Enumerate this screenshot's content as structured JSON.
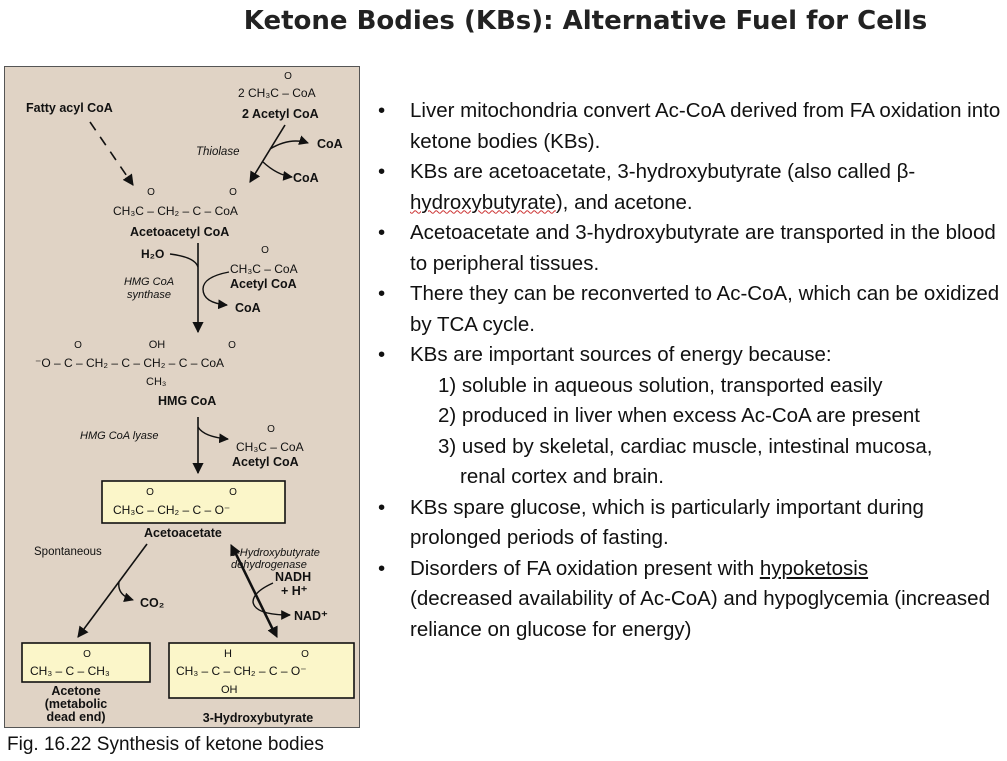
{
  "title": "Ketone Bodies (KBs): Alternative Fuel for Cells",
  "caption": "Fig. 16.22 Synthesis of ketone bodies",
  "diagram": {
    "colors": {
      "panel": "#e0d3c5",
      "box": "#fbf6c9"
    },
    "fatty_acyl": "Fatty acyl CoA",
    "two_acetyl_formula": "2 CH₃C – CoA",
    "two_acetyl": "2 Acetyl CoA",
    "thiolase": "Thiolase",
    "coa1": "CoA",
    "coa2": "CoA",
    "acetoacetyl_formula": "CH₃C – CH₂ – C – CoA",
    "acetoacetyl": "Acetoacetyl CoA",
    "h2o": "H₂O",
    "hmg_synthase": "HMG CoA",
    "hmg_synthase2": "synthase",
    "acetyl_formula1": "CH₃C – CoA",
    "acetyl1": "Acetyl CoA",
    "coa3": "CoA",
    "hmg_formula": "⁻O – C – CH₂ – C – CH₂ – C – CoA",
    "hmg_oh": "OH",
    "hmg_ch3": "CH₃",
    "hmg": "HMG CoA",
    "hmg_lyase": "HMG CoA lyase",
    "acetyl_formula2": "CH₃C – CoA",
    "acetyl2": "Acetyl CoA",
    "acetoacetate_formula": "CH₃C – CH₂ – C – O⁻",
    "acetoacetate": "Acetoacetate",
    "spontaneous": "Spontaneous",
    "co2": "CO₂",
    "dehydrogenase1": "3-Hydroxybutyrate",
    "dehydrogenase2": "dehydrogenase",
    "nadh": "NADH",
    "hplus": "+ H⁺",
    "nad": "NAD⁺",
    "acetone_formula": "CH₃ – C – CH₃",
    "acetone1": "Acetone",
    "acetone2": "(metabolic",
    "acetone3": "dead end)",
    "hb_formula": "CH₃ – C – CH₂ – C – O⁻",
    "hb_h": "H",
    "hb_oh": "OH",
    "hb": "3-Hydroxybutyrate",
    "oxygen": "O"
  },
  "bullets": {
    "b1": "Liver mitochondria convert Ac-CoA derived from FA oxidation into ketone bodies (KBs).",
    "b2a": "KBs are acetoacetate, 3-hydroxybutyrate (also called β-",
    "b2b": "hydroxybutyrate",
    "b2c": "), and acetone.",
    "b3": "Acetoacetate and 3-hydroxybutyrate are transported in the blood to peripheral tissues.",
    "b4": "There they can be reconverted to Ac-CoA, which can be oxidized by TCA cycle.",
    "b5": "KBs are important sources of energy because:",
    "b5_1": "1) soluble in aqueous solution, transported easily",
    "b5_2": "2) produced in liver when excess Ac-CoA are present",
    "b5_3a": "3) used by skeletal, cardiac muscle, intestinal mucosa,",
    "b5_3b": "renal cortex and brain.",
    "b6": "KBs spare glucose, which is particularly important during prolonged periods of fasting.",
    "b7a": "Disorders of FA oxidation present with ",
    "b7b": "hypoketosis",
    "b7c": "(decreased availability of Ac-CoA) and hypoglycemia (increased reliance on glucose for energy)"
  }
}
